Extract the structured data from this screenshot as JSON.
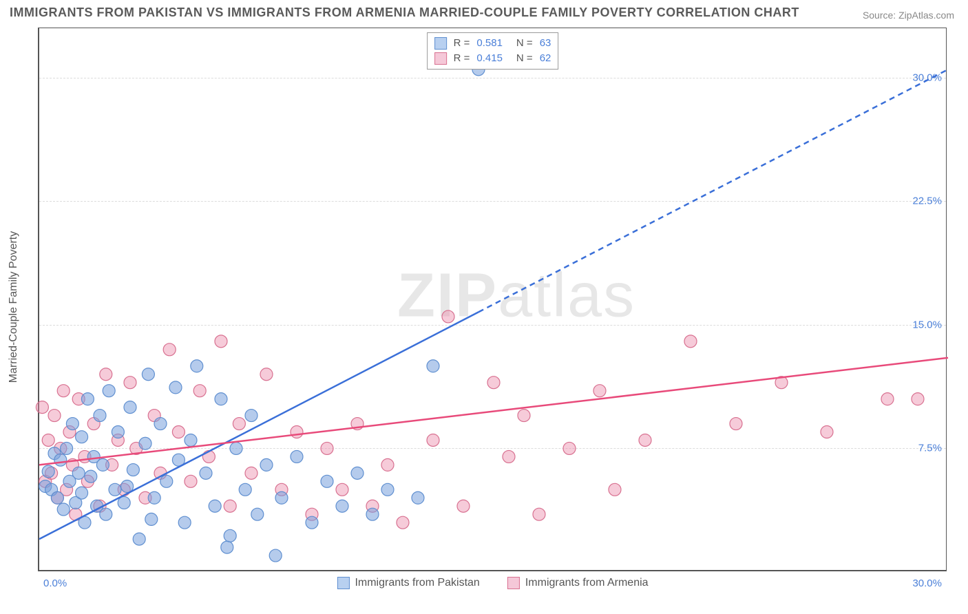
{
  "title": "IMMIGRANTS FROM PAKISTAN VS IMMIGRANTS FROM ARMENIA MARRIED-COUPLE FAMILY POVERTY CORRELATION CHART",
  "source": "Source: ZipAtlas.com",
  "ylabel": "Married-Couple Family Poverty",
  "watermark": {
    "bold": "ZIP",
    "light": "atlas"
  },
  "chart": {
    "type": "scatter",
    "xlim": [
      0,
      30
    ],
    "ylim": [
      0,
      33
    ],
    "yticks": [
      7.5,
      15.0,
      22.5,
      30.0
    ],
    "ytick_labels": [
      "7.5%",
      "15.0%",
      "22.5%",
      "30.0%"
    ],
    "xtick_left": "0.0%",
    "xtick_right": "30.0%",
    "grid_color": "#dcdcdc",
    "background": "#ffffff",
    "series": [
      {
        "name": "Immigrants from Pakistan",
        "color_fill": "rgba(120,160,220,0.55)",
        "color_stroke": "#5f8fd0",
        "swatch_fill": "#b8d0f0",
        "swatch_border": "#5f8fd0",
        "R": "0.581",
        "N": "63",
        "marker_r": 9,
        "trend": {
          "x1": 0,
          "y1": 2.0,
          "x2": 30,
          "y2": 30.5,
          "solid_until_x": 14.5,
          "color": "#3a6fd8",
          "width": 2.5
        },
        "points": [
          [
            0.2,
            5.2
          ],
          [
            0.3,
            6.1
          ],
          [
            0.4,
            5.0
          ],
          [
            0.5,
            7.2
          ],
          [
            0.6,
            4.5
          ],
          [
            0.7,
            6.8
          ],
          [
            0.8,
            3.8
          ],
          [
            0.9,
            7.5
          ],
          [
            1.0,
            5.5
          ],
          [
            1.1,
            9.0
          ],
          [
            1.2,
            4.2
          ],
          [
            1.3,
            6.0
          ],
          [
            1.4,
            8.2
          ],
          [
            1.5,
            3.0
          ],
          [
            1.6,
            10.5
          ],
          [
            1.7,
            5.8
          ],
          [
            1.8,
            7.0
          ],
          [
            1.9,
            4.0
          ],
          [
            2.0,
            9.5
          ],
          [
            2.1,
            6.5
          ],
          [
            2.2,
            3.5
          ],
          [
            2.3,
            11.0
          ],
          [
            2.5,
            5.0
          ],
          [
            2.6,
            8.5
          ],
          [
            2.8,
            4.2
          ],
          [
            3.0,
            10.0
          ],
          [
            3.1,
            6.2
          ],
          [
            3.3,
            2.0
          ],
          [
            3.5,
            7.8
          ],
          [
            3.6,
            12.0
          ],
          [
            3.8,
            4.5
          ],
          [
            4.0,
            9.0
          ],
          [
            4.2,
            5.5
          ],
          [
            4.5,
            11.2
          ],
          [
            4.8,
            3.0
          ],
          [
            5.0,
            8.0
          ],
          [
            5.2,
            12.5
          ],
          [
            5.5,
            6.0
          ],
          [
            5.8,
            4.0
          ],
          [
            6.0,
            10.5
          ],
          [
            6.2,
            1.5
          ],
          [
            6.5,
            7.5
          ],
          [
            6.8,
            5.0
          ],
          [
            7.0,
            9.5
          ],
          [
            7.2,
            3.5
          ],
          [
            7.5,
            6.5
          ],
          [
            7.8,
            1.0
          ],
          [
            8.0,
            4.5
          ],
          [
            8.5,
            7.0
          ],
          [
            9.0,
            3.0
          ],
          [
            9.5,
            5.5
          ],
          [
            10.0,
            4.0
          ],
          [
            10.5,
            6.0
          ],
          [
            11.0,
            3.5
          ],
          [
            11.5,
            5.0
          ],
          [
            12.5,
            4.5
          ],
          [
            13.0,
            12.5
          ],
          [
            14.5,
            30.5
          ],
          [
            6.3,
            2.2
          ],
          [
            4.6,
            6.8
          ],
          [
            2.9,
            5.2
          ],
          [
            1.4,
            4.8
          ],
          [
            3.7,
            3.2
          ]
        ]
      },
      {
        "name": "Immigrants from Armenia",
        "color_fill": "rgba(235,140,170,0.45)",
        "color_stroke": "#d87090",
        "swatch_fill": "#f5c8d8",
        "swatch_border": "#d87090",
        "R": "0.415",
        "N": "62",
        "marker_r": 9,
        "trend": {
          "x1": 0,
          "y1": 6.5,
          "x2": 30,
          "y2": 13.0,
          "solid_until_x": 30,
          "color": "#e84a7a",
          "width": 2.5
        },
        "points": [
          [
            0.1,
            10.0
          ],
          [
            0.2,
            5.5
          ],
          [
            0.3,
            8.0
          ],
          [
            0.4,
            6.0
          ],
          [
            0.5,
            9.5
          ],
          [
            0.6,
            4.5
          ],
          [
            0.7,
            7.5
          ],
          [
            0.8,
            11.0
          ],
          [
            0.9,
            5.0
          ],
          [
            1.0,
            8.5
          ],
          [
            1.1,
            6.5
          ],
          [
            1.2,
            3.5
          ],
          [
            1.3,
            10.5
          ],
          [
            1.5,
            7.0
          ],
          [
            1.6,
            5.5
          ],
          [
            1.8,
            9.0
          ],
          [
            2.0,
            4.0
          ],
          [
            2.2,
            12.0
          ],
          [
            2.4,
            6.5
          ],
          [
            2.6,
            8.0
          ],
          [
            2.8,
            5.0
          ],
          [
            3.0,
            11.5
          ],
          [
            3.2,
            7.5
          ],
          [
            3.5,
            4.5
          ],
          [
            3.8,
            9.5
          ],
          [
            4.0,
            6.0
          ],
          [
            4.3,
            13.5
          ],
          [
            4.6,
            8.5
          ],
          [
            5.0,
            5.5
          ],
          [
            5.3,
            11.0
          ],
          [
            5.6,
            7.0
          ],
          [
            6.0,
            14.0
          ],
          [
            6.3,
            4.0
          ],
          [
            6.6,
            9.0
          ],
          [
            7.0,
            6.0
          ],
          [
            7.5,
            12.0
          ],
          [
            8.0,
            5.0
          ],
          [
            8.5,
            8.5
          ],
          [
            9.0,
            3.5
          ],
          [
            9.5,
            7.5
          ],
          [
            10.0,
            5.0
          ],
          [
            10.5,
            9.0
          ],
          [
            11.0,
            4.0
          ],
          [
            11.5,
            6.5
          ],
          [
            12.0,
            3.0
          ],
          [
            13.0,
            8.0
          ],
          [
            13.5,
            15.5
          ],
          [
            14.0,
            4.0
          ],
          [
            15.0,
            11.5
          ],
          [
            15.5,
            7.0
          ],
          [
            16.0,
            9.5
          ],
          [
            16.5,
            3.5
          ],
          [
            17.5,
            7.5
          ],
          [
            18.5,
            11.0
          ],
          [
            19.0,
            5.0
          ],
          [
            20.0,
            8.0
          ],
          [
            21.5,
            14.0
          ],
          [
            23.0,
            9.0
          ],
          [
            24.5,
            11.5
          ],
          [
            26.0,
            8.5
          ],
          [
            28.0,
            10.5
          ],
          [
            29.0,
            10.5
          ]
        ]
      }
    ]
  }
}
